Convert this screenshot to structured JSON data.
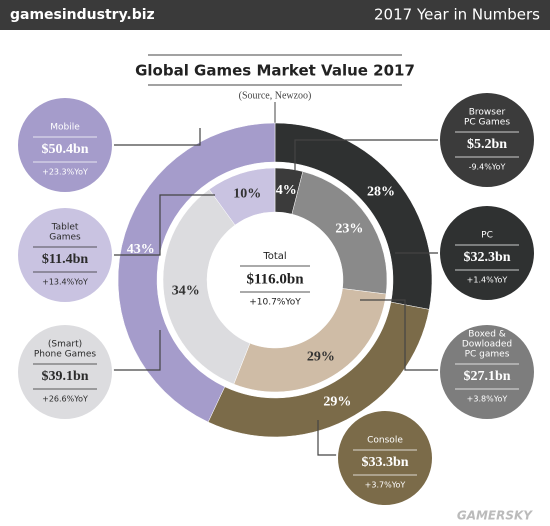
{
  "header": {
    "logo": "gamesindustry.biz",
    "title": "2017 Year in Numbers"
  },
  "chart_data": {
    "type": "donut",
    "title": "Global Games Market Value 2017",
    "subtitle": "(Source, Newzoo)",
    "center": {
      "label": "Total",
      "amount": "$116.0bn",
      "yoy": "+10.7%YoY"
    },
    "rings": [
      {
        "values": [
          28,
          29,
          43
        ],
        "value_labels": [
          "28%",
          "29%",
          "43%"
        ],
        "colors": [
          "#2f3131",
          "#7b6b49",
          "#a59ccb"
        ]
      },
      {
        "values": [
          4,
          23,
          29,
          34,
          10
        ],
        "value_labels": [
          "4%",
          "23%",
          "29%",
          "34%",
          "10%"
        ],
        "colors": [
          "#3b3b3b",
          "#8a8a8a",
          "#cfbca6",
          "#dcdcdf",
          "#c9c3e1"
        ]
      }
    ],
    "callouts": [
      {
        "title": [
          "Mobile"
        ],
        "amount": "$50.4bn",
        "yoy": "+23.3%YoY",
        "color": "#a59ccb",
        "text_color": "#ffffff"
      },
      {
        "title": [
          "Tablet",
          "Games"
        ],
        "amount": "$11.4bn",
        "yoy": "+13.4%YoY",
        "color": "#c9c3e1",
        "text_color": "#2b2b2b"
      },
      {
        "title": [
          "(Smart)",
          "Phone Games"
        ],
        "amount": "$39.1bn",
        "yoy": "+26.6%YoY",
        "color": "#dcdcdf",
        "text_color": "#2b2b2b"
      },
      {
        "title": [
          "Browser",
          "PC Games"
        ],
        "amount": "$5.2bn",
        "yoy": "-9.4%YoY",
        "color": "#3b3b3b",
        "text_color": "#ffffff"
      },
      {
        "title": [
          "PC"
        ],
        "amount": "$32.3bn",
        "yoy": "+1.4%YoY",
        "color": "#2f3131",
        "text_color": "#ffffff"
      },
      {
        "title": [
          "Boxed &",
          "Dowloaded",
          "PC games"
        ],
        "amount": "$27.1bn",
        "yoy": "+3.8%YoY",
        "color": "#7d7d7d",
        "text_color": "#ffffff"
      },
      {
        "title": [
          "Console"
        ],
        "amount": "$33.3bn",
        "yoy": "+3.7%YoY",
        "color": "#7b6b49",
        "text_color": "#ffffff"
      }
    ]
  },
  "watermark": "GAMERSKY"
}
